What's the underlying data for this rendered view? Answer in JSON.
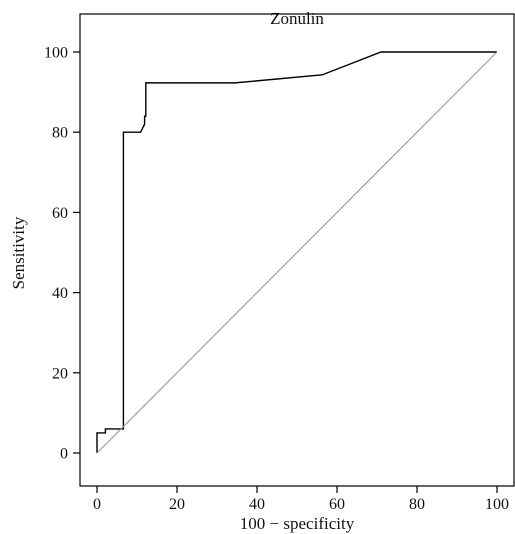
{
  "chart_data": {
    "type": "line",
    "title": "Zonulin",
    "xlabel": "100 − specificity",
    "ylabel": "Sensitivity",
    "xlim": [
      0,
      100
    ],
    "ylim": [
      0,
      100
    ],
    "xticks": [
      "0",
      "20",
      "40",
      "60",
      "80",
      "100"
    ],
    "yticks": [
      "0",
      "20",
      "40",
      "60",
      "80",
      "100"
    ],
    "grid": false,
    "series": [
      {
        "color": "#000000",
        "x": [
          0,
          0,
          2.1,
          2.1,
          4.3,
          6.6,
          6.6,
          6.6,
          10.9,
          11.9,
          11.9,
          12.2,
          12.2,
          34.5,
          56.3,
          71.0,
          100
        ],
        "y": [
          0,
          5,
          5,
          6,
          6,
          6,
          6,
          80,
          80,
          82,
          84,
          84,
          92.3,
          92.3,
          94.3,
          100,
          100
        ]
      },
      {
        "color": "#999999",
        "x": [
          0,
          100
        ],
        "y": [
          0,
          100
        ]
      }
    ]
  }
}
